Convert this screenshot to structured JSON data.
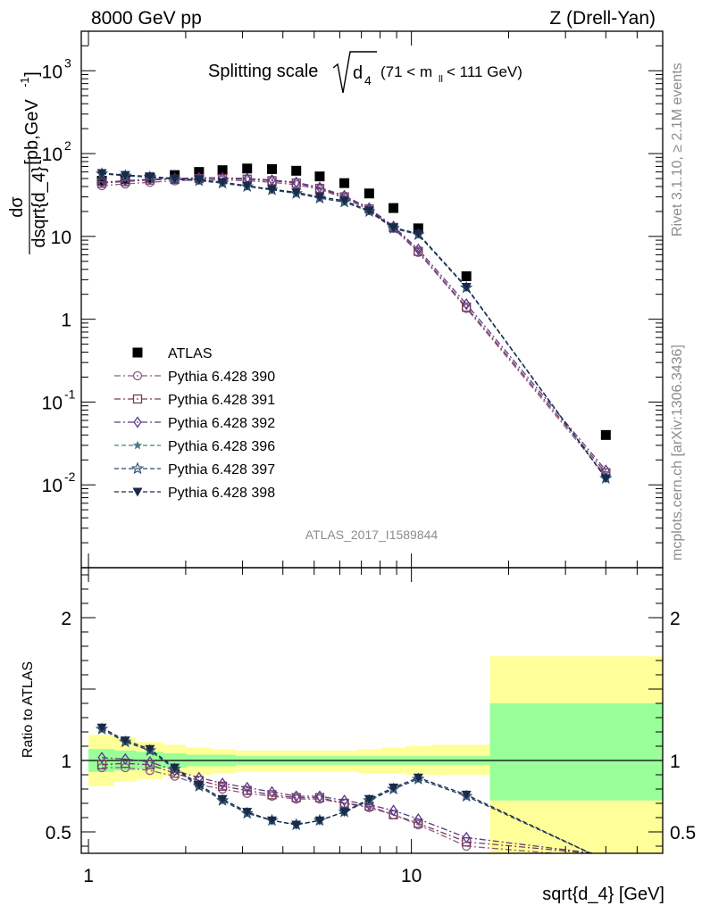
{
  "header": {
    "left": "8000 GeV pp",
    "right": "Z (Drell-Yan)"
  },
  "side_labels": {
    "rivet": "Rivet 3.1.10, ≥ 2.1M events",
    "mcplots": "mcplots.cern.ch [arXiv:1306.3436]"
  },
  "watermark": "ATLAS_2017_I1589844",
  "colors": {
    "atlas": "#000000",
    "p390": "#8a5a8a",
    "p391": "#7a3a5a",
    "p392": "#5a3a8a",
    "p396": "#4a7a8a",
    "p397": "#2a4a6a",
    "p398": "#1a2a4a",
    "band_inner": "#99ff99",
    "band_outer": "#ffff99"
  },
  "chart_data": [
    {
      "type": "scatter",
      "title_main": "Splitting scale",
      "title_sqrt": "d",
      "title_sub": "4",
      "title_range": "(71 < m",
      "title_range_sub": "ll",
      "title_range_end": " < 111 GeV)",
      "ylabel_num": "dσ",
      "ylabel_den": "dsqrt{d_4}",
      "ylabel_unit": "[pb,GeV",
      "ylabel_unit_sup": "-1",
      "ylabel_unit_end": "]",
      "xscale": "log",
      "yscale": "log",
      "xlim": [
        0.95,
        60
      ],
      "ylim": [
        0.001,
        3000
      ],
      "yticks": [
        {
          "v": 0.01,
          "base": "10",
          "exp": "-2"
        },
        {
          "v": 0.1,
          "base": "10",
          "exp": "-1"
        },
        {
          "v": 1,
          "base": "1",
          "exp": ""
        },
        {
          "v": 10,
          "base": "10",
          "exp": ""
        },
        {
          "v": 100,
          "base": "10",
          "exp": "2"
        },
        {
          "v": 1000,
          "base": "10",
          "exp": "3"
        }
      ],
      "x": [
        1.1,
        1.3,
        1.55,
        1.85,
        2.2,
        2.6,
        3.1,
        3.7,
        4.4,
        5.2,
        6.2,
        7.4,
        8.8,
        10.5,
        14.8,
        40
      ],
      "series": [
        {
          "name": "ATLAS",
          "key": "atlas",
          "marker": "square-filled",
          "line": "none",
          "values": [
            47,
            49,
            51,
            55,
            60,
            63,
            66,
            65,
            62,
            53,
            44,
            33,
            22,
            12.5,
            3.3,
            0.04
          ]
        },
        {
          "name": "Pythia 6.428 390",
          "key": "p390",
          "marker": "circle-open",
          "line": "dashdot",
          "values": [
            41,
            43,
            45,
            47,
            48,
            48,
            47,
            45,
            42,
            37,
            29,
            21,
            12.5,
            6.4,
            1.35,
            0.013
          ]
        },
        {
          "name": "Pythia 6.428 391",
          "key": "p391",
          "marker": "square-open",
          "line": "dashdot",
          "values": [
            44,
            46,
            48,
            49,
            50,
            50,
            49,
            47,
            44,
            38,
            30,
            21.5,
            12.8,
            6.6,
            1.4,
            0.014
          ]
        },
        {
          "name": "Pythia 6.428 392",
          "key": "p392",
          "marker": "diamond-open",
          "line": "dashdot",
          "values": [
            45,
            47,
            49,
            50,
            51,
            51,
            50,
            48,
            45,
            39,
            31,
            22,
            13.2,
            7.0,
            1.52,
            0.015
          ]
        },
        {
          "name": "Pythia 6.428 396",
          "key": "p396",
          "marker": "star-filled",
          "line": "dashed",
          "values": [
            57,
            54,
            52,
            49,
            47,
            44,
            40,
            36.5,
            33,
            29,
            26,
            20,
            12.5,
            10.5,
            2.4,
            0.012
          ]
        },
        {
          "name": "Pythia 6.428 397",
          "key": "p397",
          "marker": "star-open",
          "line": "dashed",
          "values": [
            57,
            54,
            52,
            49,
            47,
            44,
            40,
            36.5,
            33,
            29,
            26,
            20,
            12.5,
            10.5,
            2.4,
            0.012
          ]
        },
        {
          "name": "Pythia 6.428 398",
          "key": "p398",
          "marker": "triangle-down-filled",
          "line": "dashed",
          "values": [
            58,
            55,
            53,
            50,
            48,
            45,
            41,
            37,
            34,
            30,
            27,
            20.5,
            12.8,
            10.8,
            2.45,
            0.012
          ]
        }
      ],
      "legend_position": "lower-left"
    },
    {
      "type": "line",
      "ylabel": "Ratio to ATLAS",
      "xlabel": "sqrt{d_4} [GeV]",
      "xscale": "log",
      "xlim": [
        0.95,
        60
      ],
      "ylim": [
        0.35,
        2.35
      ],
      "yticks": [
        0.5,
        1,
        2
      ],
      "ytick_labels": [
        "0.5",
        "1",
        "2"
      ],
      "xticks": [
        1,
        10
      ],
      "xtick_labels": [
        "1",
        "10"
      ],
      "reference_line": 1,
      "bands": {
        "edges": [
          1.0,
          1.2,
          1.4,
          1.7,
          2.0,
          2.4,
          2.85,
          3.4,
          4.05,
          4.8,
          5.7,
          6.8,
          8.1,
          9.6,
          11.5,
          17.5,
          60
        ],
        "inner_low": [
          0.92,
          0.93,
          0.94,
          0.95,
          0.96,
          0.96,
          0.97,
          0.97,
          0.97,
          0.97,
          0.97,
          0.97,
          0.97,
          0.97,
          0.97,
          0.72
        ],
        "inner_high": [
          1.08,
          1.07,
          1.06,
          1.05,
          1.04,
          1.04,
          1.03,
          1.03,
          1.03,
          1.03,
          1.03,
          1.03,
          1.03,
          1.03,
          1.03,
          1.4
        ],
        "outer_low": [
          0.82,
          0.85,
          0.87,
          0.89,
          0.9,
          0.91,
          0.92,
          0.92,
          0.92,
          0.92,
          0.92,
          0.91,
          0.91,
          0.9,
          0.9,
          0.35
        ],
        "outer_high": [
          1.18,
          1.16,
          1.13,
          1.11,
          1.09,
          1.08,
          1.07,
          1.07,
          1.07,
          1.07,
          1.07,
          1.08,
          1.09,
          1.1,
          1.11,
          1.73
        ]
      },
      "x": [
        1.1,
        1.3,
        1.55,
        1.85,
        2.2,
        2.6,
        3.1,
        3.7,
        4.4,
        5.2,
        6.2,
        7.4,
        8.8,
        10.5,
        14.8,
        40
      ],
      "series": [
        {
          "key": "p390",
          "values": [
            0.95,
            0.95,
            0.93,
            0.89,
            0.83,
            0.8,
            0.77,
            0.75,
            0.73,
            0.73,
            0.7,
            0.67,
            0.62,
            0.55,
            0.4,
            0.32
          ]
        },
        {
          "key": "p391",
          "values": [
            0.97,
            0.98,
            0.97,
            0.91,
            0.86,
            0.82,
            0.79,
            0.76,
            0.74,
            0.74,
            0.7,
            0.68,
            0.62,
            0.56,
            0.43,
            0.34
          ]
        },
        {
          "key": "p392",
          "values": [
            1.02,
            1.01,
            0.99,
            0.93,
            0.88,
            0.84,
            0.81,
            0.78,
            0.75,
            0.75,
            0.72,
            0.69,
            0.65,
            0.59,
            0.46,
            0.34
          ]
        },
        {
          "key": "p396",
          "values": [
            1.22,
            1.13,
            1.07,
            0.94,
            0.82,
            0.72,
            0.63,
            0.58,
            0.55,
            0.58,
            0.64,
            0.72,
            0.8,
            0.87,
            0.75,
            0.3
          ]
        },
        {
          "key": "p397",
          "values": [
            1.22,
            1.13,
            1.07,
            0.94,
            0.82,
            0.72,
            0.63,
            0.58,
            0.55,
            0.58,
            0.64,
            0.72,
            0.8,
            0.87,
            0.75,
            0.3
          ]
        },
        {
          "key": "p398",
          "values": [
            1.23,
            1.14,
            1.08,
            0.95,
            0.83,
            0.73,
            0.64,
            0.58,
            0.55,
            0.58,
            0.64,
            0.73,
            0.81,
            0.88,
            0.76,
            0.3
          ]
        }
      ]
    }
  ]
}
